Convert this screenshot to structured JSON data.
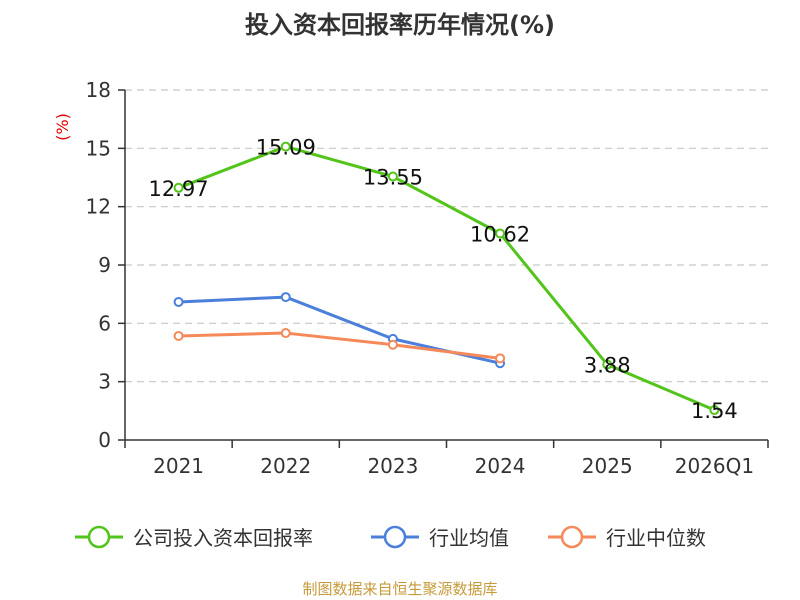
{
  "chart_data": {
    "type": "line",
    "title": "投入资本回报率历年情况(%)",
    "ylabel": "(%)",
    "xlabel": "",
    "categories": [
      "2021",
      "2022",
      "2023",
      "2024",
      "2025",
      "2026Q1"
    ],
    "ylim": [
      0,
      18
    ],
    "yticks": [
      0,
      3,
      6,
      9,
      12,
      15,
      18
    ],
    "grid": true,
    "legend_position": "bottom",
    "series": [
      {
        "name": "公司投入资本回报率",
        "color": "#52c41a",
        "values": [
          12.97,
          15.09,
          13.55,
          10.62,
          3.88,
          1.54
        ],
        "labels": [
          "12.97",
          "15.09",
          "13.55",
          "10.62",
          "3.88",
          "1.54"
        ]
      },
      {
        "name": "行业均值",
        "color": "#4a7fdc",
        "values": [
          7.1,
          7.35,
          5.2,
          3.95,
          null,
          null
        ]
      },
      {
        "name": "行业中位数",
        "color": "#f5895a",
        "values": [
          5.35,
          5.5,
          4.9,
          4.2,
          null,
          null
        ]
      }
    ]
  },
  "source": "制图数据来自恒生聚源数据库"
}
